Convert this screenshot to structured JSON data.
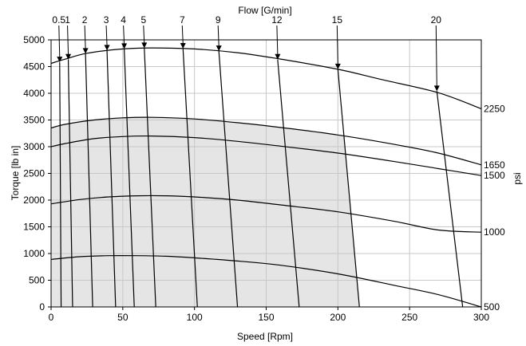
{
  "chart_data": {
    "type": "line",
    "title": "Flow [G/min]",
    "xlabel": "Speed [Rpm]",
    "ylabel": "Torque [lb in]",
    "y2label": "psi",
    "xlim": [
      0,
      300
    ],
    "ylim": [
      0,
      5000
    ],
    "grid": true,
    "x_ticks": [
      "0",
      "50",
      "100",
      "150",
      "200",
      "250",
      "300"
    ],
    "y_ticks": [
      "0",
      "500",
      "1000",
      "1500",
      "2000",
      "2500",
      "3000",
      "3500",
      "4000",
      "4500",
      "5000"
    ],
    "shaded_region_color": "#e5e5e5",
    "pressure_curves": [
      {
        "label": "2250",
        "points": [
          [
            0,
            4560
          ],
          [
            10,
            4640
          ],
          [
            25,
            4750
          ],
          [
            50,
            4830
          ],
          [
            70,
            4850
          ],
          [
            100,
            4830
          ],
          [
            130,
            4760
          ],
          [
            160,
            4640
          ],
          [
            200,
            4450
          ],
          [
            230,
            4260
          ],
          [
            270,
            4010
          ],
          [
            300,
            3710
          ]
        ]
      },
      {
        "label": "1650",
        "points": [
          [
            0,
            3350
          ],
          [
            10,
            3420
          ],
          [
            30,
            3500
          ],
          [
            50,
            3540
          ],
          [
            70,
            3550
          ],
          [
            100,
            3520
          ],
          [
            130,
            3450
          ],
          [
            160,
            3360
          ],
          [
            200,
            3220
          ],
          [
            240,
            3040
          ],
          [
            270,
            2880
          ],
          [
            300,
            2660
          ]
        ]
      },
      {
        "label": "1500",
        "points": [
          [
            0,
            3000
          ],
          [
            10,
            3060
          ],
          [
            30,
            3150
          ],
          [
            50,
            3190
          ],
          [
            70,
            3200
          ],
          [
            100,
            3170
          ],
          [
            130,
            3100
          ],
          [
            160,
            3010
          ],
          [
            200,
            2880
          ],
          [
            240,
            2720
          ],
          [
            270,
            2590
          ],
          [
            300,
            2460
          ]
        ]
      },
      {
        "label": "1000",
        "points": [
          [
            0,
            1930
          ],
          [
            20,
            2010
          ],
          [
            40,
            2060
          ],
          [
            60,
            2080
          ],
          [
            80,
            2080
          ],
          [
            100,
            2060
          ],
          [
            130,
            2000
          ],
          [
            160,
            1910
          ],
          [
            200,
            1780
          ],
          [
            240,
            1600
          ],
          [
            270,
            1440
          ],
          [
            300,
            1400
          ]
        ]
      },
      {
        "label": "500",
        "points": [
          [
            0,
            890
          ],
          [
            20,
            940
          ],
          [
            40,
            960
          ],
          [
            60,
            960
          ],
          [
            80,
            950
          ],
          [
            100,
            920
          ],
          [
            130,
            860
          ],
          [
            160,
            780
          ],
          [
            200,
            620
          ],
          [
            240,
            400
          ],
          [
            270,
            230
          ],
          [
            300,
            0
          ]
        ]
      }
    ],
    "flow_lines": [
      {
        "label": "0.5",
        "top": [
          6,
          4580
        ],
        "bottom": [
          7,
          0
        ]
      },
      {
        "label": "1",
        "top": [
          12,
          4630
        ],
        "bottom": [
          15,
          0
        ]
      },
      {
        "label": "2",
        "top": [
          24,
          4740
        ],
        "bottom": [
          29,
          0
        ]
      },
      {
        "label": "3",
        "top": [
          39,
          4800
        ],
        "bottom": [
          45,
          0
        ]
      },
      {
        "label": "4",
        "top": [
          51,
          4830
        ],
        "bottom": [
          58,
          0
        ]
      },
      {
        "label": "5",
        "top": [
          65,
          4845
        ],
        "bottom": [
          73,
          0
        ]
      },
      {
        "label": "7",
        "top": [
          92,
          4835
        ],
        "bottom": [
          102,
          0
        ]
      },
      {
        "label": "9",
        "top": [
          117,
          4790
        ],
        "bottom": [
          130,
          0
        ]
      },
      {
        "label": "12",
        "top": [
          158,
          4630
        ],
        "bottom": [
          173,
          0
        ]
      },
      {
        "label": "15",
        "top": [
          200,
          4450
        ],
        "bottom": [
          215,
          0
        ]
      },
      {
        "label": "20",
        "top": [
          269,
          4040
        ],
        "bottom": [
          287,
          0
        ]
      }
    ]
  }
}
